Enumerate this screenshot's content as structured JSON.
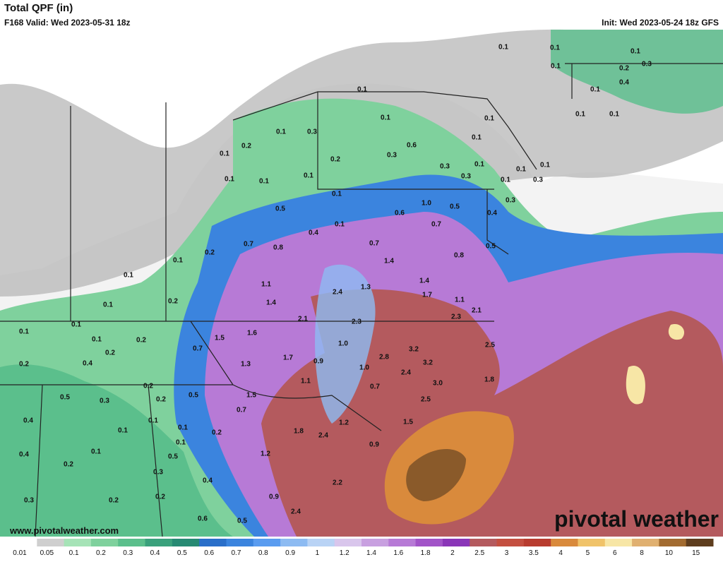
{
  "header": {
    "title": "Total QPF (in)",
    "valid": "F168 Valid: Wed 2023-05-31 18z",
    "init": "Init: Wed 2023-05-24 18z GFS"
  },
  "watermark": "www.pivotalweather.com",
  "logo": "pivotal weather",
  "legend": {
    "labels": [
      "0.01",
      "0.05",
      "0.1",
      "0.2",
      "0.3",
      "0.4",
      "0.5",
      "0.6",
      "0.7",
      "0.8",
      "0.9",
      "1",
      "1.2",
      "1.4",
      "1.6",
      "1.8",
      "2",
      "2.5",
      "3",
      "3.5",
      "4",
      "5",
      "6",
      "8",
      "10",
      "15"
    ],
    "colors": [
      "#ffffff",
      "#cfcfcf",
      "#a6e3b7",
      "#7fd19d",
      "#5bbf8c",
      "#3aa17c",
      "#278a73",
      "#2a6fc9",
      "#3b84de",
      "#5a9cf0",
      "#8dbbf2",
      "#b9d3f5",
      "#d9c6ec",
      "#c8a0e0",
      "#b77ad6",
      "#a254c8",
      "#8a36b8",
      "#b45a5e",
      "#c44f40",
      "#b83c2f",
      "#d98a3c",
      "#f0c36a",
      "#f7e6a6",
      "#e0b070",
      "#a26b30",
      "#5e3d1e"
    ]
  },
  "map_labels": [
    "0.1",
    "0.1",
    "0.1",
    "0.1",
    "0.2",
    "0.3",
    "0.4",
    "0.1",
    "0.1",
    "0.1",
    "0.1",
    "0.1",
    "0.1",
    "0.1",
    "0.3",
    "0.1",
    "0.2",
    "0.6",
    "0.1",
    "0.3",
    "0.2",
    "0.3",
    "0.1",
    "0.1",
    "0.1",
    "0.1",
    "0.3",
    "0.1",
    "0.1",
    "0.1",
    "0.1",
    "0.3",
    "0.3",
    "1.0",
    "0.5",
    "0.5",
    "0.6",
    "0.4",
    "0.1",
    "0.4",
    "0.7",
    "0.7",
    "0.8",
    "0.7",
    "0.5",
    "0.2",
    "0.8",
    "1.4",
    "0.1",
    "0.1",
    "1.1",
    "1.4",
    "1.3",
    "2.4",
    "1.7",
    "1.1",
    "0.2",
    "1.4",
    "0.1",
    "2.1",
    "2.1",
    "2.3",
    "2.3",
    "0.1",
    "0.1",
    "1.6",
    "1.5",
    "0.1",
    "0.2",
    "1.0",
    "3.2",
    "2.5",
    "0.7",
    "0.2",
    "2.8",
    "1.7",
    "0.9",
    "3.2",
    "0.2",
    "0.4",
    "1.3",
    "1.0",
    "2.4",
    "1.1",
    "1.8",
    "3.0",
    "0.7",
    "0.2",
    "0.5",
    "1.5",
    "0.5",
    "0.3",
    "0.2",
    "2.5",
    "0.7",
    "0.4",
    "0.1",
    "1.2",
    "1.5",
    "0.1",
    "0.2",
    "1.8",
    "2.4",
    "0.1",
    "0.1",
    "0.9",
    "0.4",
    "0.1",
    "0.5",
    "1.2",
    "0.2",
    "0.3",
    "0.4",
    "2.2",
    "0.3",
    "0.2",
    "0.2",
    "0.9",
    "2.4",
    "0.6",
    "0.5"
  ]
}
